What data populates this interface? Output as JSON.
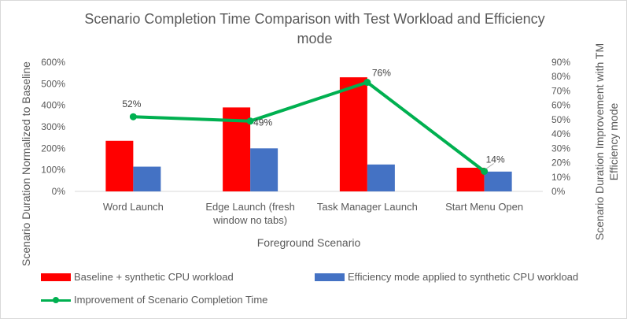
{
  "chart_data": {
    "type": "bar",
    "title_line1": "Scenario Completion Time Comparison with Test Workload and Efficiency",
    "title_line2": "mode",
    "xlabel": "Foreground Scenario",
    "ylabel": "Scenario Duration Normalized to Baseline",
    "y2label_line1": "Scenario Duration Improvement with TM",
    "y2label_line2": "Efficiency mode",
    "categories": [
      [
        "Word Launch"
      ],
      [
        "Edge Launch (fresh",
        "window no tabs)"
      ],
      [
        "Task Manager Launch"
      ],
      [
        "Start Menu Open"
      ]
    ],
    "ylim": [
      0,
      600
    ],
    "yticks": [
      "0%",
      "100%",
      "200%",
      "300%",
      "400%",
      "500%",
      "600%"
    ],
    "y2lim": [
      0,
      90
    ],
    "y2ticks": [
      "0%",
      "10%",
      "20%",
      "30%",
      "40%",
      "50%",
      "60%",
      "70%",
      "80%",
      "90%"
    ],
    "series": [
      {
        "name": "Baseline + synthetic CPU  workload",
        "kind": "bar",
        "axis": "left",
        "color": "#ff0000",
        "values": [
          235,
          390,
          530,
          110
        ]
      },
      {
        "name": "Efficiency mode applied to synthetic CPU workload",
        "kind": "bar",
        "axis": "left",
        "color": "#4472c4",
        "values": [
          115,
          200,
          125,
          92
        ]
      },
      {
        "name": "Improvement of Scenario Completion Time",
        "kind": "line",
        "axis": "right",
        "color": "#00b050",
        "values": [
          52,
          49,
          76,
          14
        ],
        "labels": [
          "52%",
          "49%",
          "76%",
          "14%"
        ]
      }
    ],
    "grid": false,
    "legend": "bottom"
  }
}
